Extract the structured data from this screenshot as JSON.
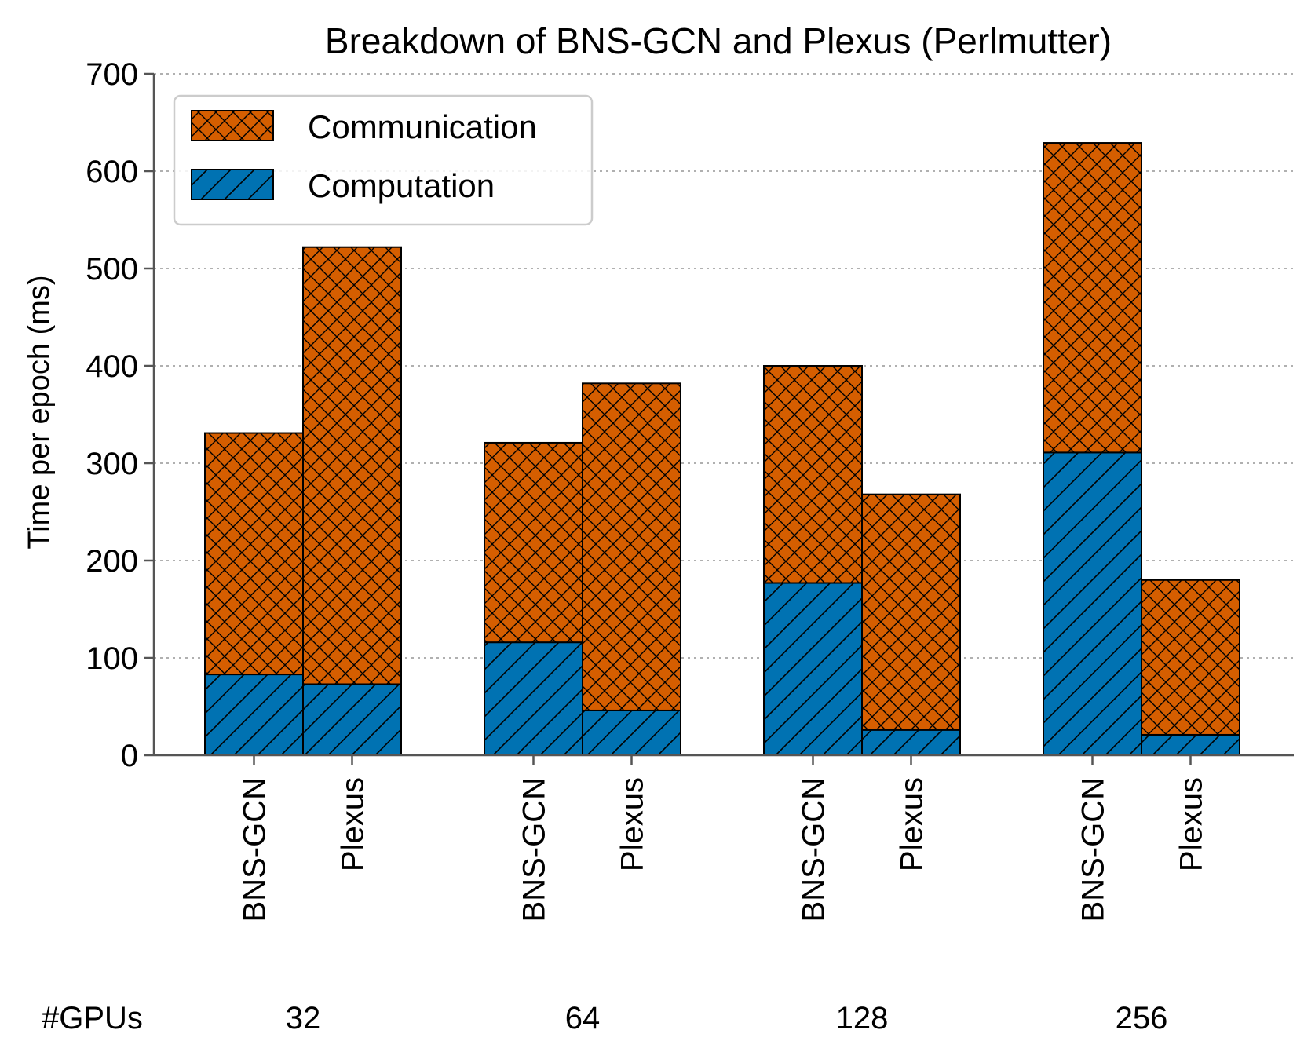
{
  "chart_data": {
    "type": "bar",
    "stacked": true,
    "title": "Breakdown of BNS-GCN and Plexus (Perlmutter)",
    "ylabel": "Time per epoch (ms)",
    "xlabel": "",
    "ylim": [
      0,
      700
    ],
    "yticks": [
      "0",
      "100",
      "200",
      "300",
      "400",
      "500",
      "600",
      "700"
    ],
    "grid": "horizontal dotted",
    "legend_position": "top-left",
    "group_axis_label": "#GPUs",
    "groups": [
      "32",
      "64",
      "128",
      "256"
    ],
    "categories": [
      "BNS-GCN",
      "Plexus"
    ],
    "series": [
      {
        "name": "Computation",
        "color": "#0072b2",
        "hatch": "diagonal",
        "values": [
          [
            83,
            73
          ],
          [
            116,
            46
          ],
          [
            177,
            26
          ],
          [
            311,
            21
          ]
        ]
      },
      {
        "name": "Communication",
        "color": "#d55e00",
        "hatch": "crosshatch",
        "values": [
          [
            248,
            449
          ],
          [
            205,
            336
          ],
          [
            223,
            242
          ],
          [
            318,
            159
          ]
        ]
      }
    ]
  }
}
